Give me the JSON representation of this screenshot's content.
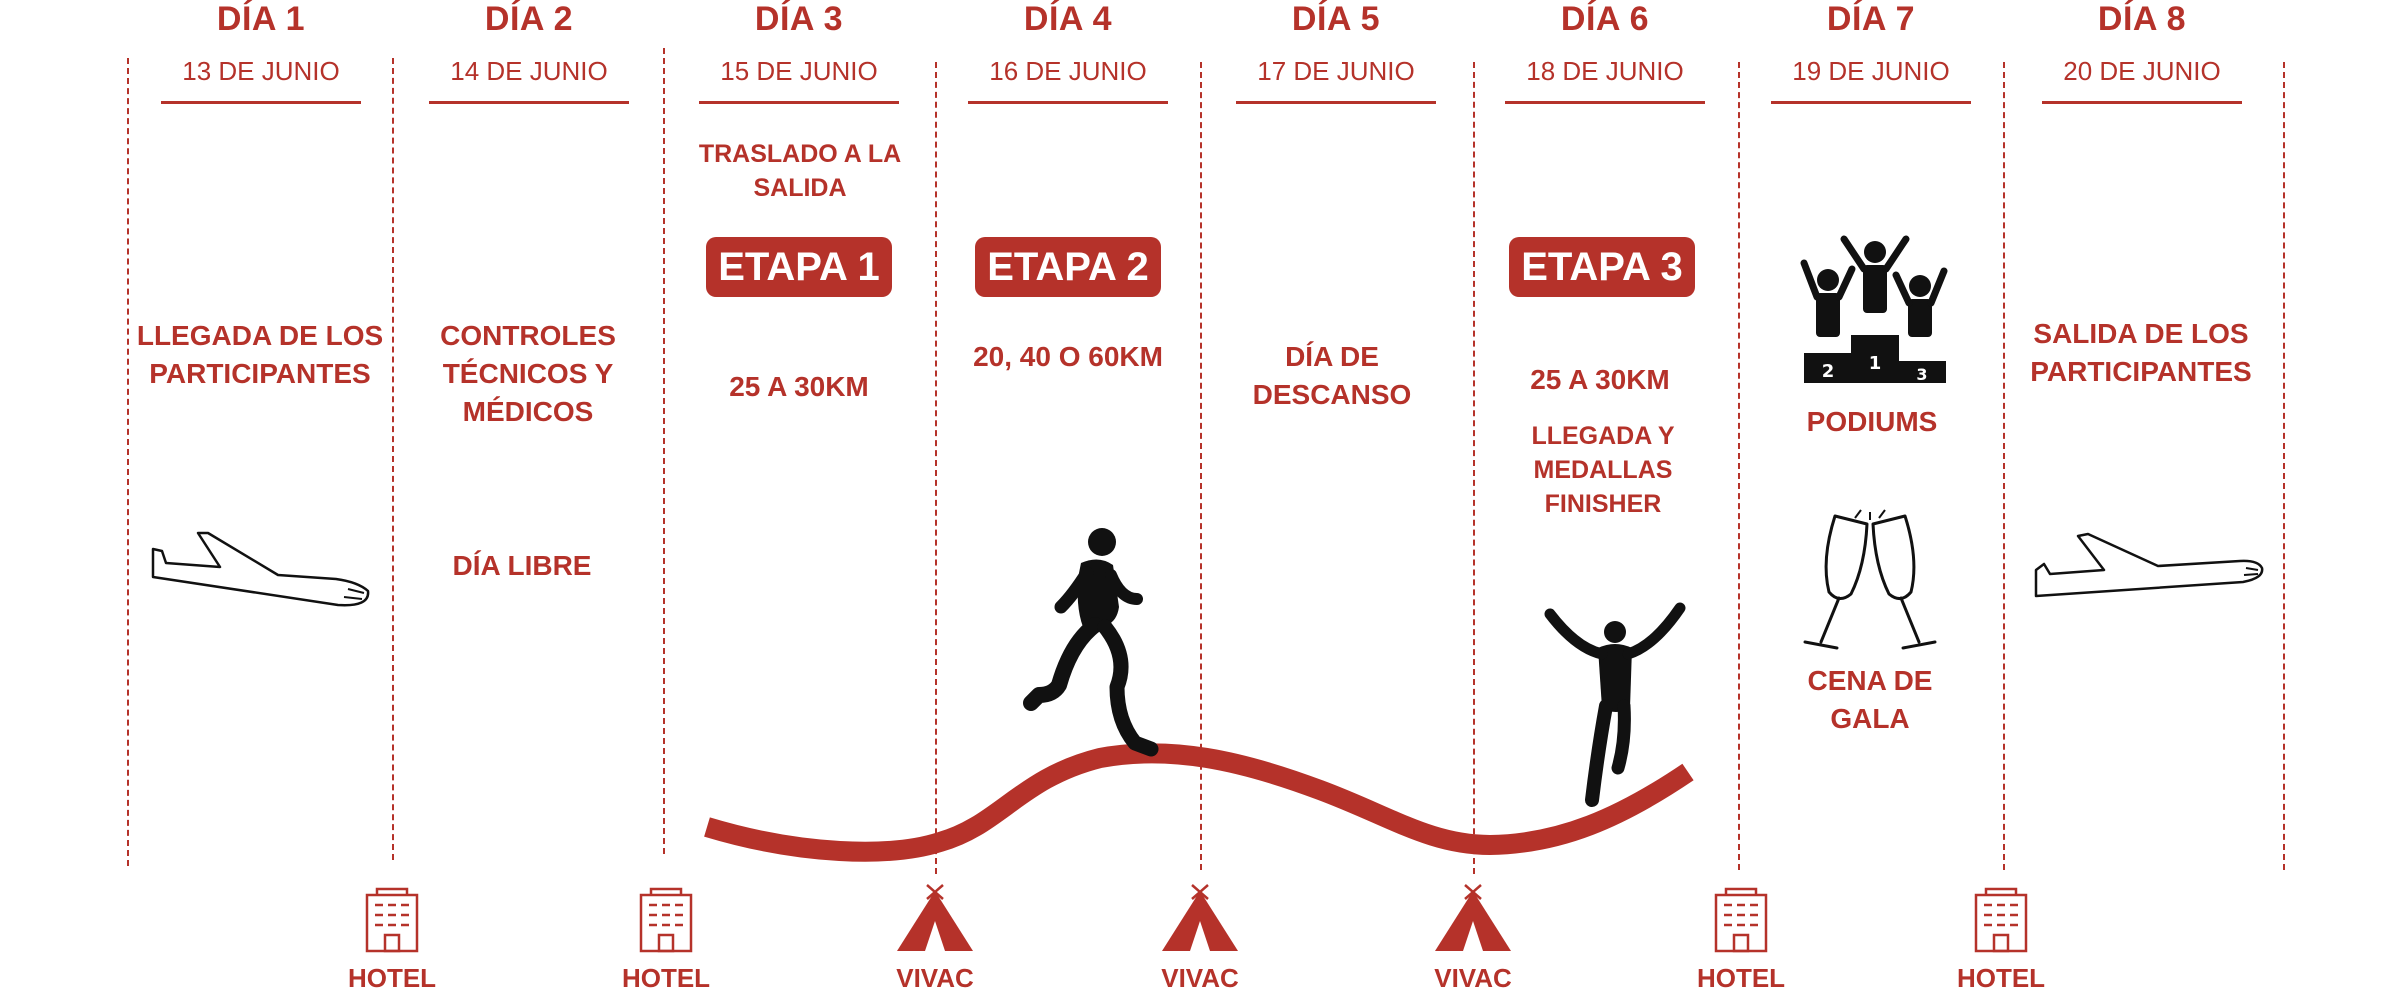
{
  "days": [
    {
      "title": "DÍA 1",
      "date": "13 DE JUNIO"
    },
    {
      "title": "DÍA 2",
      "date": "14 DE JUNIO"
    },
    {
      "title": "DÍA 3",
      "date": "15 DE JUNIO"
    },
    {
      "title": "DÍA 4",
      "date": "16 DE JUNIO"
    },
    {
      "title": "DÍA 5",
      "date": "17 DE JUNIO"
    },
    {
      "title": "DÍA 6",
      "date": "18 DE JUNIO"
    },
    {
      "title": "DÍA 7",
      "date": "19 DE JUNIO"
    },
    {
      "title": "DÍA 8",
      "date": "20 DE JUNIO"
    }
  ],
  "activities": {
    "day1": "LLEGADA DE LOS PARTICIPANTES",
    "day2_main": "CONTROLES TÉCNICOS Y MÉDICOS",
    "day2_free": "DÍA LIBRE",
    "day3_transfer": "TRASLADO A LA SALIDA",
    "day3_stage": "ETAPA 1",
    "day3_distance": "25 A 30KM",
    "day4_stage": "ETAPA 2",
    "day4_distance": "20, 40 O 60KM",
    "day5": "DÍA DE DESCANSO",
    "day6_stage": "ETAPA 3",
    "day6_distance": "25 A 30KM",
    "day6_finish": "LLEGADA Y MEDALLAS FINISHER",
    "day7_podiums": "PODIUMS",
    "day7_dinner": "CENA DE GALA",
    "day8": "SALIDA DE LOS PARTICIPANTES"
  },
  "podium_numbers": [
    "2",
    "1",
    "3"
  ],
  "accommodation": [
    {
      "label": "HOTEL",
      "icon": "hotel-icon"
    },
    {
      "label": "HOTEL",
      "icon": "hotel-icon"
    },
    {
      "label": "VIVAC",
      "icon": "tent-icon"
    },
    {
      "label": "VIVAC",
      "icon": "tent-icon"
    },
    {
      "label": "VIVAC",
      "icon": "tent-icon"
    },
    {
      "label": "HOTEL",
      "icon": "hotel-icon"
    },
    {
      "label": "HOTEL",
      "icon": "hotel-icon"
    }
  ],
  "colors": {
    "accent": "#b5322a",
    "silhouette": "#111111"
  }
}
